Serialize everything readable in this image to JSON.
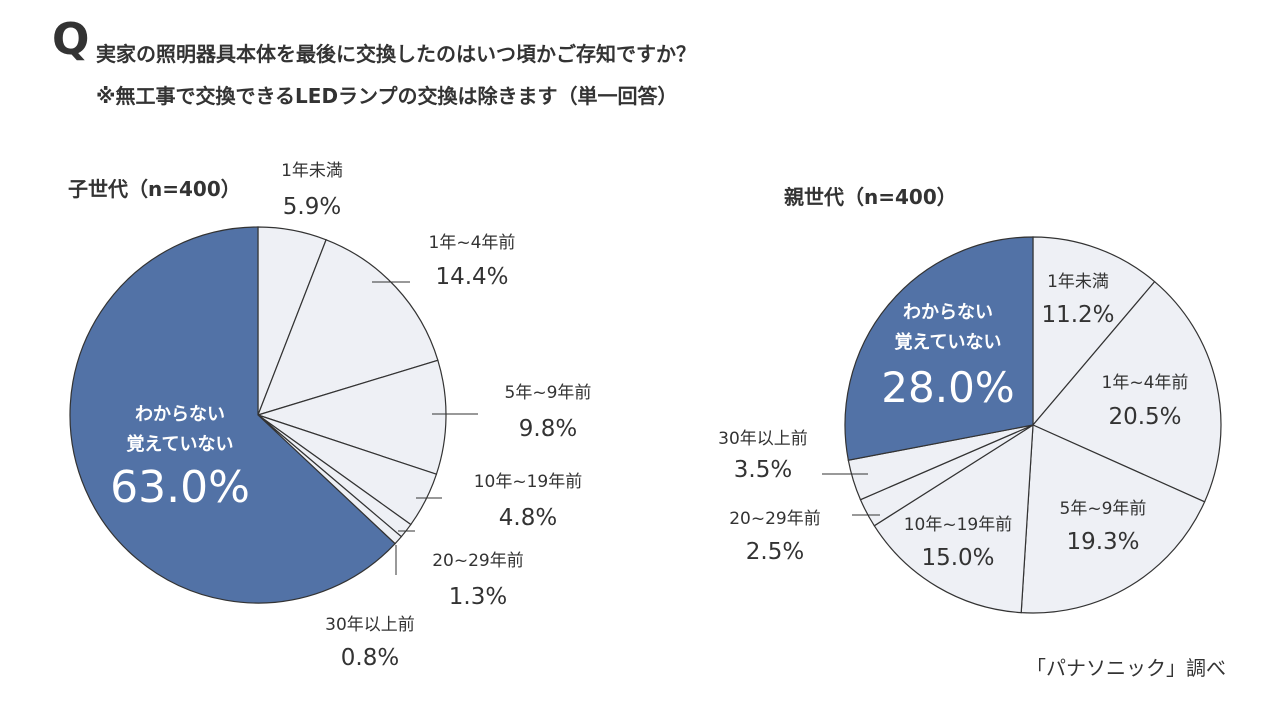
{
  "question": {
    "mark": "Q",
    "line1": "実家の照明器具本体を最後に交換したのはいつ頃かご存知ですか？",
    "line2": "※無工事で交換できるLEDランプの交換は除きます（単一回答）"
  },
  "source": "「パナソニック」調べ",
  "colors": {
    "highlight": "#5272a6",
    "light": "#eef0f5",
    "stroke": "#333333"
  },
  "chart_data": [
    {
      "type": "pie",
      "title": "子世代（n=400）",
      "slices": [
        {
          "label": "1年未満",
          "value": 5.9,
          "display": "5.9%"
        },
        {
          "label": "1年~4年前",
          "value": 14.4,
          "display": "14.4%"
        },
        {
          "label": "5年~9年前",
          "value": 9.8,
          "display": "9.8%"
        },
        {
          "label": "10年~19年前",
          "value": 4.8,
          "display": "4.8%"
        },
        {
          "label": "20~29年前",
          "value": 1.3,
          "display": "1.3%"
        },
        {
          "label": "30年以上前",
          "value": 0.8,
          "display": "0.8%"
        },
        {
          "label": "わからない\n覚えていない",
          "value": 63.0,
          "display": "63.0%",
          "highlight": true
        }
      ]
    },
    {
      "type": "pie",
      "title": "親世代（n=400）",
      "slices": [
        {
          "label": "1年未満",
          "value": 11.2,
          "display": "11.2%"
        },
        {
          "label": "1年~4年前",
          "value": 20.5,
          "display": "20.5%"
        },
        {
          "label": "5年~9年前",
          "value": 19.3,
          "display": "19.3%"
        },
        {
          "label": "10年~19年前",
          "value": 15.0,
          "display": "15.0%"
        },
        {
          "label": "20~29年前",
          "value": 2.5,
          "display": "2.5%"
        },
        {
          "label": "30年以上前",
          "value": 3.5,
          "display": "3.5%"
        },
        {
          "label": "わからない\n覚えていない",
          "value": 28.0,
          "display": "28.0%",
          "highlight": true
        }
      ]
    }
  ]
}
